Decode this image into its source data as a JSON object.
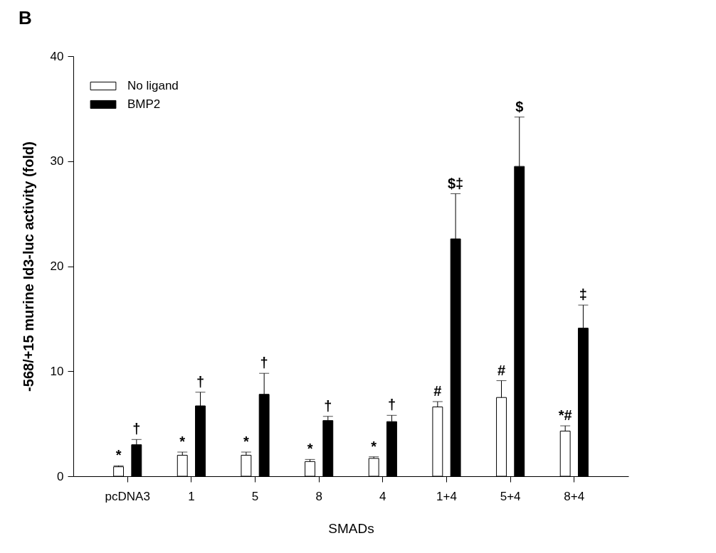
{
  "chart_data": {
    "type": "bar",
    "xlabel": "SMADs",
    "ylabel": "-568/+15 murine Id3-luc activity (fold)",
    "categories": [
      "pcDNA3",
      "1",
      "5",
      "8",
      "4",
      "1+4",
      "5+4",
      "8+4"
    ],
    "series": [
      {
        "name": "No ligand",
        "color": "#ffffff",
        "values": [
          0.9,
          2.0,
          2.0,
          1.4,
          1.7,
          6.6,
          7.5,
          4.3
        ],
        "errors": [
          [
            0.9,
            1.0
          ],
          [
            2.0,
            2.3
          ],
          [
            2.0,
            2.3
          ],
          [
            1.4,
            1.6
          ],
          [
            1.7,
            1.85
          ],
          [
            6.6,
            7.1
          ],
          [
            7.5,
            9.1
          ],
          [
            4.3,
            4.8
          ]
        ]
      },
      {
        "name": "BMP2",
        "color": "#000000",
        "values": [
          3.0,
          6.7,
          7.8,
          5.3,
          5.2,
          22.6,
          29.5,
          14.1
        ],
        "errors": [
          [
            3.0,
            3.5
          ],
          [
            6.7,
            8.0
          ],
          [
            7.8,
            9.8
          ],
          [
            5.3,
            5.7
          ],
          [
            5.2,
            5.8
          ],
          [
            22.6,
            26.9
          ],
          [
            29.5,
            34.2
          ],
          [
            14.1,
            16.3
          ]
        ]
      }
    ],
    "ylim": [
      0,
      40
    ],
    "yticks": [
      0,
      10,
      20,
      30,
      40
    ],
    "grid": false,
    "legend": "top left",
    "annotations": [
      "B",
      "*",
      "†",
      "*",
      "†",
      "*",
      "†",
      "*",
      "†",
      "*",
      "†",
      "#",
      "$‡",
      "#",
      "$",
      "*#",
      "‡"
    ]
  }
}
